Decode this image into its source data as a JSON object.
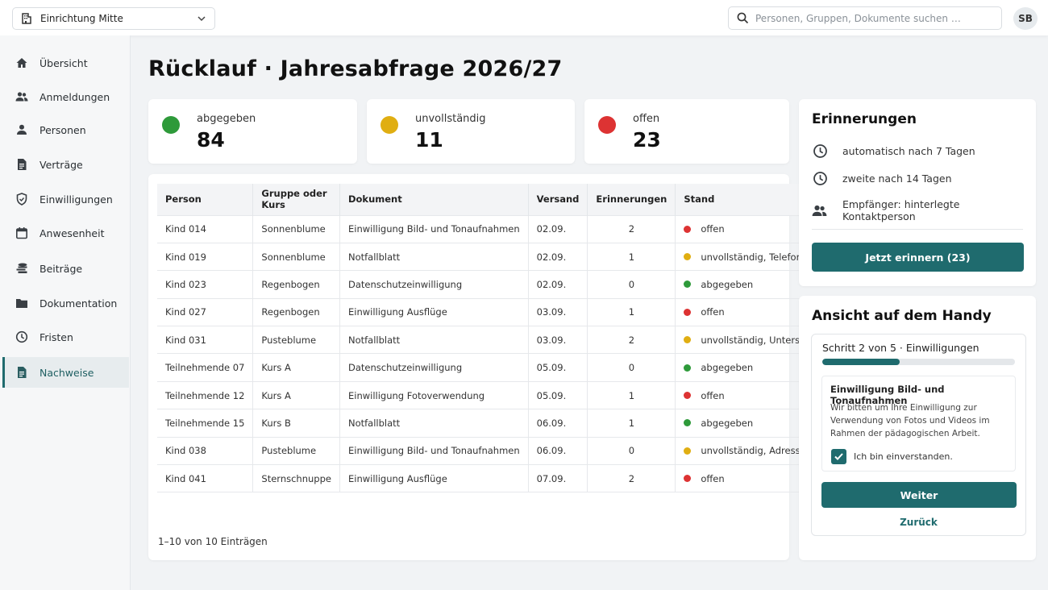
{
  "header": {
    "facility": "Einrichtung Mitte",
    "search_placeholder": "Personen, Gruppen, Dokumente suchen …",
    "avatar_initials": "SB"
  },
  "sidebar": {
    "items": [
      {
        "label": "Übersicht",
        "icon": "home-icon"
      },
      {
        "label": "Anmeldungen",
        "icon": "people-icon"
      },
      {
        "label": "Personen",
        "icon": "person-icon"
      },
      {
        "label": "Verträge",
        "icon": "document-icon"
      },
      {
        "label": "Einwilligungen",
        "icon": "shield-icon"
      },
      {
        "label": "Anwesenheit",
        "icon": "calendar-icon"
      },
      {
        "label": "Beiträge",
        "icon": "coins-icon"
      },
      {
        "label": "Dokumentation",
        "icon": "folder-icon"
      },
      {
        "label": "Fristen",
        "icon": "clock-icon"
      },
      {
        "label": "Nachweise",
        "icon": "document-icon",
        "active": true
      }
    ]
  },
  "main": {
    "title": "Rücklauf · Jahresabfrage 2026/27",
    "stats": [
      {
        "label": "abgegeben",
        "value": "84",
        "color": "#2e9a3a"
      },
      {
        "label": "unvollständig",
        "value": "11",
        "color": "#e0ae12"
      },
      {
        "label": "offen",
        "value": "23",
        "color": "#dd3333"
      }
    ],
    "table": {
      "headers": [
        "Person",
        "Gruppe oder Kurs",
        "Dokument",
        "Versand",
        "Erinnerungen",
        "Stand"
      ],
      "rows": [
        {
          "person": "Kind 014",
          "group": "Sonnenblume",
          "doc": "Einwilligung Bild- und Tonaufnahmen",
          "sent": "02.09.",
          "reminders": "2",
          "status": "offen",
          "status_color": "#dd3333"
        },
        {
          "person": "Kind 019",
          "group": "Sonnenblume",
          "doc": "Notfallblatt",
          "sent": "02.09.",
          "reminders": "1",
          "status": "unvollständig, Telefon fehlt",
          "status_color": "#e0ae12"
        },
        {
          "person": "Kind 023",
          "group": "Regenbogen",
          "doc": "Datenschutzeinwilligung",
          "sent": "02.09.",
          "reminders": "0",
          "status": "abgegeben",
          "status_color": "#2e9a3a"
        },
        {
          "person": "Kind 027",
          "group": "Regenbogen",
          "doc": "Einwilligung Ausflüge",
          "sent": "03.09.",
          "reminders": "1",
          "status": "offen",
          "status_color": "#dd3333"
        },
        {
          "person": "Kind 031",
          "group": "Pusteblume",
          "doc": "Notfallblatt",
          "sent": "03.09.",
          "reminders": "2",
          "status": "unvollständig, Unterschrift fehlt",
          "status_color": "#e0ae12"
        },
        {
          "person": "Teilnehmende 07",
          "group": "Kurs A",
          "doc": "Datenschutzeinwilligung",
          "sent": "05.09.",
          "reminders": "0",
          "status": "abgegeben",
          "status_color": "#2e9a3a"
        },
        {
          "person": "Teilnehmende 12",
          "group": "Kurs A",
          "doc": "Einwilligung Fotoverwendung",
          "sent": "05.09.",
          "reminders": "1",
          "status": "offen",
          "status_color": "#dd3333"
        },
        {
          "person": "Teilnehmende 15",
          "group": "Kurs B",
          "doc": "Notfallblatt",
          "sent": "06.09.",
          "reminders": "1",
          "status": "abgegeben",
          "status_color": "#2e9a3a"
        },
        {
          "person": "Kind 038",
          "group": "Pusteblume",
          "doc": "Einwilligung Bild- und Tonaufnahmen",
          "sent": "06.09.",
          "reminders": "0",
          "status": "unvollständig, Adresse fehlt",
          "status_color": "#e0ae12"
        },
        {
          "person": "Kind 041",
          "group": "Sternschnuppe",
          "doc": "Einwilligung Ausflüge",
          "sent": "07.09.",
          "reminders": "2",
          "status": "offen",
          "status_color": "#dd3333"
        }
      ],
      "pagination": "1–10 von 10 Einträgen"
    }
  },
  "reminders": {
    "title": "Erinnerungen",
    "rows": [
      {
        "text": "automatisch nach 7 Tagen",
        "icon": "clock-icon"
      },
      {
        "text": "zweite nach 14 Tagen",
        "icon": "clock-icon"
      },
      {
        "text": "Empfänger: hinterlegte Kontaktperson",
        "icon": "people-icon"
      }
    ],
    "button": "Jetzt erinnern (23)"
  },
  "phone": {
    "title": "Ansicht auf dem Handy",
    "step": "Schritt 2 von 5 · Einwilligungen",
    "progress": 0.4,
    "consent_title": "Einwilligung Bild- und Tonaufnahmen",
    "consent_text": "Wir bitten um Ihre Einwilligung zur Verwendung von Fotos und Videos im Rahmen der pädagogischen Arbeit.",
    "checkbox_label": "Ich bin einverstanden.",
    "checked": true,
    "next": "Weiter",
    "back": "Zurück"
  },
  "colors": {
    "accent": "#1f6b6e"
  }
}
